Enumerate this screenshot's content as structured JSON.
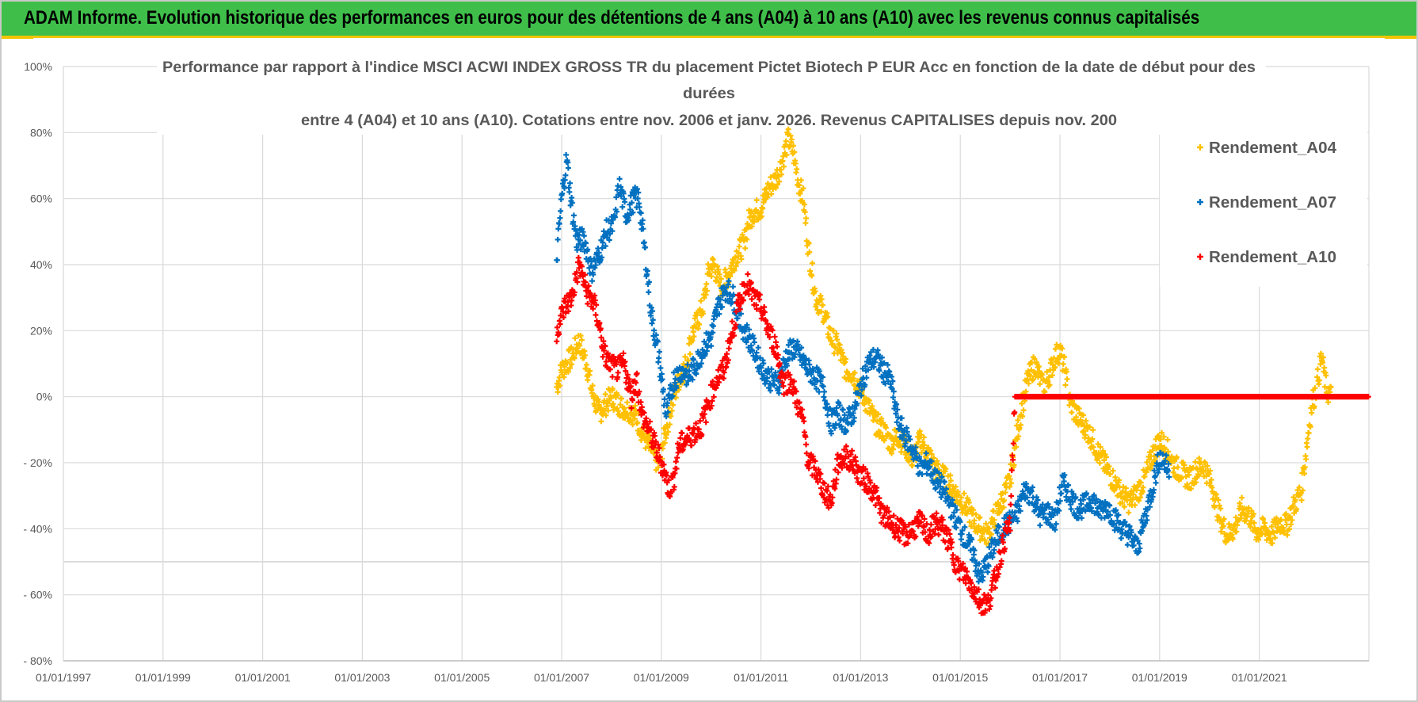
{
  "header": {
    "banner": "ADAM Informe. Evolution historique des performances en euros pour des détentions de 4 ans (A04) à 10 ans (A10) avec les revenus connus capitalisés"
  },
  "colors": {
    "banner_bg": "#3fbf4a",
    "banner_accent": "#f2c500",
    "A04": "#ffc000",
    "A07": "#0070c0",
    "A10": "#ff0000",
    "grid": "#d9d9d9",
    "text": "#595959"
  },
  "chart_data": {
    "type": "scatter",
    "title_lines": [
      "Performance par rapport à l'indice MSCI ACWI INDEX GROSS TR  du placement Pictet Biotech P EUR Acc en fonction de la date de début pour des",
      "durées",
      "entre 4 (A04) et 10 ans (A10).  Cotations entre nov. 2006 et janv. 2026. Revenus CAPITALISES depuis nov. 200"
    ],
    "y_ticks": [
      "100%",
      "80%",
      "60%",
      "40%",
      "20%",
      "0%",
      "- 20%",
      "- 40%",
      "- 60%",
      "- 80%"
    ],
    "x_ticks": [
      "01/01/1997",
      "01/01/1999",
      "01/01/2001",
      "01/01/2003",
      "01/01/2005",
      "01/01/2007",
      "01/01/2009",
      "01/01/2011",
      "01/01/2013",
      "01/01/2015",
      "01/01/2017",
      "01/01/2019",
      "01/01/2021"
    ],
    "xlim": [
      1997.0,
      2023.2
    ],
    "ylim": [
      -80,
      100
    ],
    "legend_position": "top-right",
    "series": [
      {
        "name": "Rendement_A04",
        "color": "#ffc000",
        "points": [
          [
            2006.9,
            3
          ],
          [
            2007.0,
            8
          ],
          [
            2007.2,
            12
          ],
          [
            2007.35,
            17
          ],
          [
            2007.5,
            10
          ],
          [
            2007.6,
            2
          ],
          [
            2007.75,
            -5
          ],
          [
            2007.9,
            -2
          ],
          [
            2008.0,
            0
          ],
          [
            2008.2,
            -3
          ],
          [
            2008.35,
            -4
          ],
          [
            2008.5,
            -6
          ],
          [
            2008.65,
            -12
          ],
          [
            2008.8,
            -16
          ],
          [
            2008.95,
            -21
          ],
          [
            2009.05,
            -13
          ],
          [
            2009.2,
            -3
          ],
          [
            2009.35,
            5
          ],
          [
            2009.5,
            10
          ],
          [
            2009.6,
            18
          ],
          [
            2009.75,
            24
          ],
          [
            2009.85,
            28
          ],
          [
            2009.95,
            38
          ],
          [
            2010.05,
            40
          ],
          [
            2010.2,
            33
          ],
          [
            2010.35,
            37
          ],
          [
            2010.5,
            43
          ],
          [
            2010.65,
            46
          ],
          [
            2010.75,
            53
          ],
          [
            2010.85,
            56
          ],
          [
            2011.0,
            57
          ],
          [
            2011.15,
            63
          ],
          [
            2011.3,
            66
          ],
          [
            2011.4,
            70
          ],
          [
            2011.55,
            78
          ],
          [
            2011.65,
            74
          ],
          [
            2011.75,
            65
          ],
          [
            2011.85,
            60
          ],
          [
            2011.95,
            45
          ],
          [
            2012.1,
            30
          ],
          [
            2012.25,
            26
          ],
          [
            2012.4,
            18
          ],
          [
            2012.55,
            15
          ],
          [
            2012.7,
            8
          ],
          [
            2012.85,
            7
          ],
          [
            2013.0,
            2
          ],
          [
            2013.15,
            -3
          ],
          [
            2013.3,
            -8
          ],
          [
            2013.45,
            -10
          ],
          [
            2013.6,
            -14
          ],
          [
            2013.75,
            -12
          ],
          [
            2013.9,
            -15
          ],
          [
            2014.05,
            -19
          ],
          [
            2014.2,
            -13
          ],
          [
            2014.35,
            -17
          ],
          [
            2014.5,
            -22
          ],
          [
            2014.65,
            -24
          ],
          [
            2014.8,
            -27
          ],
          [
            2014.95,
            -30
          ],
          [
            2015.1,
            -33
          ],
          [
            2015.25,
            -37
          ],
          [
            2015.4,
            -40
          ],
          [
            2015.55,
            -42
          ],
          [
            2015.7,
            -36
          ],
          [
            2015.85,
            -31
          ],
          [
            2016.0,
            -25
          ],
          [
            2016.1,
            -15
          ],
          [
            2016.2,
            -6
          ],
          [
            2016.35,
            5
          ],
          [
            2016.5,
            10
          ],
          [
            2016.65,
            3
          ],
          [
            2016.75,
            5
          ],
          [
            2016.9,
            12
          ],
          [
            2017.0,
            14
          ],
          [
            2017.1,
            8
          ],
          [
            2017.2,
            -2
          ],
          [
            2017.35,
            -6
          ],
          [
            2017.5,
            -9
          ],
          [
            2017.65,
            -13
          ],
          [
            2017.8,
            -18
          ],
          [
            2017.95,
            -22
          ],
          [
            2018.1,
            -26
          ],
          [
            2018.25,
            -30
          ],
          [
            2018.4,
            -32
          ],
          [
            2018.55,
            -29
          ],
          [
            2018.7,
            -25
          ],
          [
            2018.85,
            -18
          ],
          [
            2019.0,
            -13
          ],
          [
            2019.15,
            -16
          ],
          [
            2019.3,
            -21
          ],
          [
            2019.45,
            -23
          ],
          [
            2019.6,
            -25
          ],
          [
            2019.75,
            -22
          ],
          [
            2019.9,
            -21
          ],
          [
            2020.05,
            -27
          ],
          [
            2020.2,
            -36
          ],
          [
            2020.35,
            -42
          ],
          [
            2020.5,
            -40
          ],
          [
            2020.65,
            -34
          ],
          [
            2020.8,
            -36
          ],
          [
            2020.95,
            -41
          ],
          [
            2021.1,
            -40
          ],
          [
            2021.25,
            -42
          ],
          [
            2021.4,
            -38
          ],
          [
            2021.55,
            -39
          ],
          [
            2021.7,
            -33
          ],
          [
            2021.85,
            -28
          ],
          [
            2021.95,
            -15
          ],
          [
            2022.05,
            -3
          ],
          [
            2022.15,
            3
          ],
          [
            2022.25,
            12
          ],
          [
            2022.35,
            2
          ],
          [
            2022.45,
            0
          ]
        ]
      },
      {
        "name": "Rendement_A07",
        "color": "#0070c0",
        "points": [
          [
            2006.9,
            42
          ],
          [
            2007.0,
            60
          ],
          [
            2007.1,
            72
          ],
          [
            2007.2,
            58
          ],
          [
            2007.3,
            47
          ],
          [
            2007.45,
            48
          ],
          [
            2007.6,
            38
          ],
          [
            2007.75,
            43
          ],
          [
            2007.9,
            50
          ],
          [
            2008.05,
            52
          ],
          [
            2008.15,
            64
          ],
          [
            2008.3,
            55
          ],
          [
            2008.45,
            60
          ],
          [
            2008.55,
            60
          ],
          [
            2008.7,
            40
          ],
          [
            2008.8,
            25
          ],
          [
            2008.95,
            12
          ],
          [
            2009.1,
            -6
          ],
          [
            2009.25,
            5
          ],
          [
            2009.4,
            8
          ],
          [
            2009.55,
            6
          ],
          [
            2009.7,
            10
          ],
          [
            2009.85,
            15
          ],
          [
            2010.0,
            18
          ],
          [
            2010.15,
            28
          ],
          [
            2010.3,
            33
          ],
          [
            2010.45,
            30
          ],
          [
            2010.6,
            22
          ],
          [
            2010.75,
            18
          ],
          [
            2010.9,
            13
          ],
          [
            2011.05,
            8
          ],
          [
            2011.2,
            5
          ],
          [
            2011.35,
            4
          ],
          [
            2011.5,
            12
          ],
          [
            2011.65,
            15
          ],
          [
            2011.8,
            12
          ],
          [
            2011.95,
            8
          ],
          [
            2012.1,
            6
          ],
          [
            2012.25,
            3
          ],
          [
            2012.4,
            -8
          ],
          [
            2012.55,
            -5
          ],
          [
            2012.7,
            -8
          ],
          [
            2012.85,
            -5
          ],
          [
            2013.0,
            3
          ],
          [
            2013.15,
            10
          ],
          [
            2013.3,
            12
          ],
          [
            2013.45,
            8
          ],
          [
            2013.6,
            5
          ],
          [
            2013.75,
            -8
          ],
          [
            2013.9,
            -12
          ],
          [
            2014.05,
            -16
          ],
          [
            2014.2,
            -22
          ],
          [
            2014.35,
            -20
          ],
          [
            2014.5,
            -25
          ],
          [
            2014.65,
            -28
          ],
          [
            2014.8,
            -33
          ],
          [
            2014.95,
            -38
          ],
          [
            2015.1,
            -43
          ],
          [
            2015.25,
            -47
          ],
          [
            2015.4,
            -55
          ],
          [
            2015.55,
            -50
          ],
          [
            2015.7,
            -44
          ],
          [
            2015.85,
            -40
          ],
          [
            2016.0,
            -38
          ],
          [
            2016.15,
            -35
          ],
          [
            2016.3,
            -28
          ],
          [
            2016.45,
            -30
          ],
          [
            2016.6,
            -36
          ],
          [
            2016.75,
            -35
          ],
          [
            2016.9,
            -38
          ],
          [
            2017.05,
            -26
          ],
          [
            2017.2,
            -30
          ],
          [
            2017.35,
            -34
          ],
          [
            2017.5,
            -33
          ],
          [
            2017.65,
            -31
          ],
          [
            2017.8,
            -35
          ],
          [
            2017.95,
            -33
          ],
          [
            2018.1,
            -37
          ],
          [
            2018.25,
            -40
          ],
          [
            2018.4,
            -42
          ],
          [
            2018.55,
            -46
          ],
          [
            2018.7,
            -37
          ],
          [
            2018.85,
            -28
          ],
          [
            2019.0,
            -18
          ],
          [
            2019.1,
            -20
          ],
          [
            2019.2,
            -23
          ]
        ]
      },
      {
        "name": "Rendement_A10",
        "color": "#ff0000",
        "points": [
          [
            2006.9,
            20
          ],
          [
            2007.05,
            27
          ],
          [
            2007.2,
            30
          ],
          [
            2007.35,
            40
          ],
          [
            2007.5,
            32
          ],
          [
            2007.65,
            28
          ],
          [
            2007.75,
            22
          ],
          [
            2007.85,
            13
          ],
          [
            2007.95,
            10
          ],
          [
            2008.1,
            8
          ],
          [
            2008.25,
            10
          ],
          [
            2008.4,
            0
          ],
          [
            2008.5,
            6
          ],
          [
            2008.6,
            -5
          ],
          [
            2008.75,
            -10
          ],
          [
            2008.9,
            -16
          ],
          [
            2009.05,
            -22
          ],
          [
            2009.15,
            -28
          ],
          [
            2009.25,
            -25
          ],
          [
            2009.35,
            -15
          ],
          [
            2009.5,
            -13
          ],
          [
            2009.65,
            -11
          ],
          [
            2009.8,
            -9
          ],
          [
            2009.95,
            -2
          ],
          [
            2010.1,
            5
          ],
          [
            2010.25,
            8
          ],
          [
            2010.4,
            18
          ],
          [
            2010.55,
            28
          ],
          [
            2010.7,
            35
          ],
          [
            2010.85,
            30
          ],
          [
            2011.0,
            27
          ],
          [
            2011.15,
            20
          ],
          [
            2011.3,
            15
          ],
          [
            2011.45,
            4
          ],
          [
            2011.6,
            5
          ],
          [
            2011.75,
            -3
          ],
          [
            2011.85,
            -8
          ],
          [
            2011.95,
            -20
          ],
          [
            2012.1,
            -22
          ],
          [
            2012.25,
            -28
          ],
          [
            2012.4,
            -32
          ],
          [
            2012.55,
            -20
          ],
          [
            2012.7,
            -18
          ],
          [
            2012.85,
            -20
          ],
          [
            2013.0,
            -24
          ],
          [
            2013.15,
            -26
          ],
          [
            2013.3,
            -30
          ],
          [
            2013.45,
            -36
          ],
          [
            2013.6,
            -38
          ],
          [
            2013.75,
            -40
          ],
          [
            2013.9,
            -42
          ],
          [
            2014.05,
            -40
          ],
          [
            2014.2,
            -38
          ],
          [
            2014.35,
            -42
          ],
          [
            2014.5,
            -38
          ],
          [
            2014.65,
            -40
          ],
          [
            2014.8,
            -45
          ],
          [
            2014.95,
            -52
          ],
          [
            2015.1,
            -54
          ],
          [
            2015.25,
            -58
          ],
          [
            2015.4,
            -62
          ],
          [
            2015.55,
            -63
          ],
          [
            2015.7,
            -55
          ],
          [
            2015.85,
            -45
          ],
          [
            2016.0,
            -38
          ],
          [
            2016.1,
            0
          ],
          [
            2016.5,
            0
          ],
          [
            2017.0,
            0
          ],
          [
            2017.5,
            0
          ],
          [
            2018.0,
            0
          ],
          [
            2018.5,
            0
          ],
          [
            2019.0,
            0
          ],
          [
            2019.5,
            0
          ],
          [
            2020.0,
            0
          ],
          [
            2020.5,
            0
          ],
          [
            2021.0,
            0
          ],
          [
            2021.5,
            0
          ],
          [
            2022.0,
            0
          ],
          [
            2022.5,
            0
          ],
          [
            2023.0,
            0
          ],
          [
            2023.2,
            0
          ]
        ]
      }
    ]
  }
}
